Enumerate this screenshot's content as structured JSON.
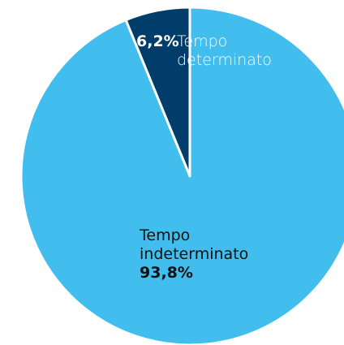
{
  "chart_data": {
    "type": "pie",
    "categories": [
      "Tempo determinato",
      "Tempo indeterminato"
    ],
    "values": [
      6.2,
      93.8
    ],
    "value_labels": [
      "6,2%",
      "93,8%"
    ],
    "colors": [
      "#003d6b",
      "#41bdee"
    ]
  }
}
